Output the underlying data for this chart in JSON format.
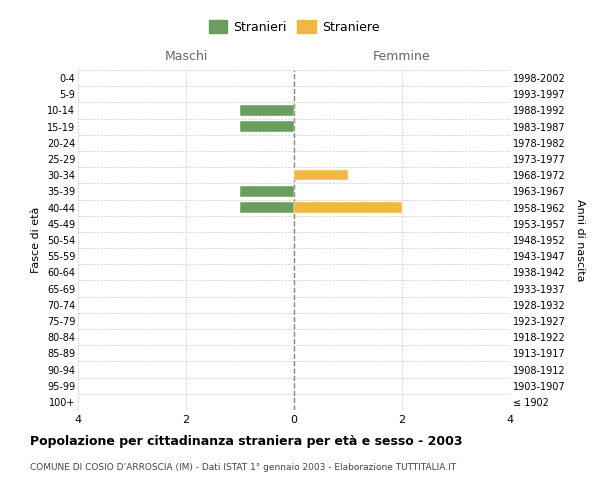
{
  "age_groups": [
    "100+",
    "95-99",
    "90-94",
    "85-89",
    "80-84",
    "75-79",
    "70-74",
    "65-69",
    "60-64",
    "55-59",
    "50-54",
    "45-49",
    "40-44",
    "35-39",
    "30-34",
    "25-29",
    "20-24",
    "15-19",
    "10-14",
    "5-9",
    "0-4"
  ],
  "birth_years": [
    "≤ 1902",
    "1903-1907",
    "1908-1912",
    "1913-1917",
    "1918-1922",
    "1923-1927",
    "1928-1932",
    "1933-1937",
    "1938-1942",
    "1943-1947",
    "1948-1952",
    "1953-1957",
    "1958-1962",
    "1963-1967",
    "1968-1972",
    "1973-1977",
    "1978-1982",
    "1983-1987",
    "1988-1992",
    "1993-1997",
    "1998-2002"
  ],
  "maschi": [
    0,
    0,
    0,
    0,
    0,
    0,
    0,
    0,
    0,
    0,
    0,
    0,
    -1,
    -1,
    0,
    0,
    0,
    -1,
    -1,
    0,
    0
  ],
  "femmine": [
    0,
    0,
    0,
    0,
    0,
    0,
    0,
    0,
    0,
    0,
    0,
    0,
    2,
    0,
    1,
    0,
    0,
    0,
    0,
    0,
    0
  ],
  "male_color": "#6a9e5f",
  "female_color": "#f0b840",
  "xlim": [
    -4,
    4
  ],
  "xticks": [
    -4,
    -2,
    0,
    2,
    4
  ],
  "xlabel_maschi": "Maschi",
  "xlabel_femmine": "Femmine",
  "ylabel_left": "Fasce di età",
  "ylabel_right": "Anni di nascita",
  "legend_male": "Stranieri",
  "legend_female": "Straniere",
  "title": "Popolazione per cittadinanza straniera per età e sesso - 2003",
  "subtitle": "COMUNE DI COSIO D’ARROSCIA (IM) - Dati ISTAT 1° gennaio 2003 - Elaborazione TUTTITALIA.IT",
  "grid_color": "#cccccc",
  "center_line_color": "#888866",
  "bg_color": "#ffffff"
}
